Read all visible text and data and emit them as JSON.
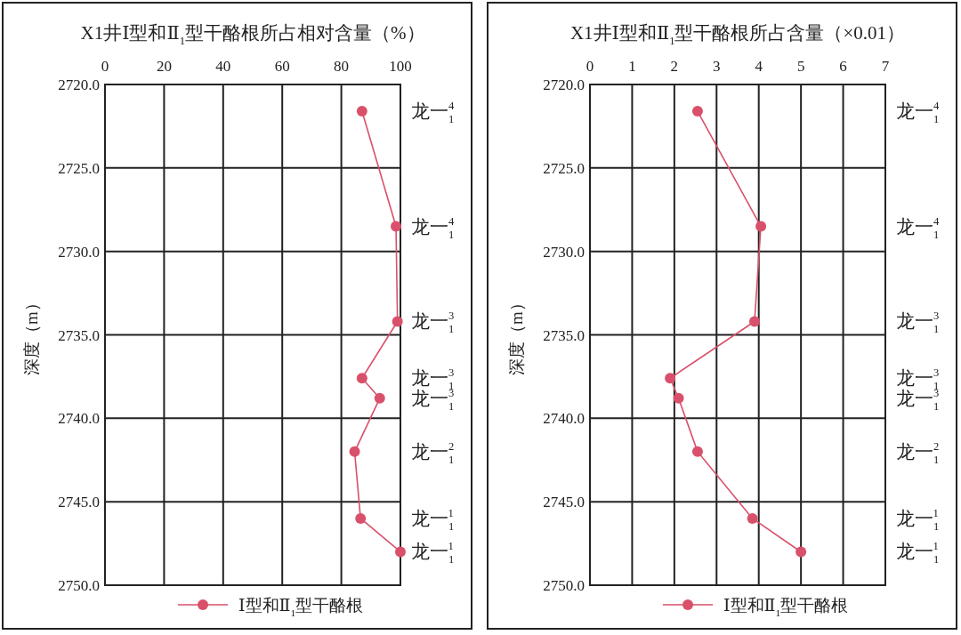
{
  "chart_data": [
    {
      "type": "line",
      "title": "X1井Ⅰ型和Ⅱ$_{1}$型干酪根所占相对含量（%）",
      "ylabel": "深度（m）",
      "xlim": [
        0,
        100
      ],
      "xticks": [
        0,
        20,
        40,
        60,
        80,
        100
      ],
      "ylim": [
        2750,
        2720
      ],
      "yticks": [
        {
          "value": 2720,
          "label": "2720.0"
        },
        {
          "value": 2725,
          "label": "2725.0"
        },
        {
          "value": 2730,
          "label": "2730.0"
        },
        {
          "value": 2735,
          "label": "2735.0"
        },
        {
          "value": 2740,
          "label": "2740.0"
        },
        {
          "value": 2745,
          "label": "2745.0"
        },
        {
          "value": 2750,
          "label": "2750.0"
        }
      ],
      "grid": true,
      "legend": "bottom right",
      "marker": "circle",
      "line_style": "solid",
      "series": [
        {
          "name": "Ⅰ型和Ⅱ$_{1}$型干酪根",
          "color": "#d9506a",
          "x": [
            87,
            98.5,
            99,
            87,
            93,
            84.5,
            86.5,
            100
          ],
          "values": [
            2721.6,
            2728.5,
            2734.2,
            2737.6,
            2738.8,
            2742.0,
            2746.0,
            2748.0
          ]
        }
      ],
      "annotations": [
        "龙一$_{1}$$^{4}$",
        "龙一$_{1}$$^{4}$",
        "龙一$_{1}$$^{3}$",
        "龙一$_{1}$$^{3}$",
        "龙一$_{1}$$^{3}$",
        "龙一$_{1}$$^{2}$",
        "龙一$_{1}$$^{1}$",
        "龙一$_{1}$$^{1}$"
      ]
    },
    {
      "type": "line",
      "title": "X1井Ⅰ型和Ⅱ$_{1}$型干酪根所占含量（×0.01）",
      "ylabel": "深度（m）",
      "xlim": [
        0,
        7
      ],
      "xticks": [
        0,
        1,
        2,
        3,
        4,
        5,
        6,
        7
      ],
      "ylim": [
        2750,
        2720
      ],
      "yticks": [
        {
          "value": 2720,
          "label": "2720.0"
        },
        {
          "value": 2725,
          "label": "2725.0"
        },
        {
          "value": 2730,
          "label": "2730.0"
        },
        {
          "value": 2735,
          "label": "2735.0"
        },
        {
          "value": 2740,
          "label": "2740.0"
        },
        {
          "value": 2745,
          "label": "2745.0"
        },
        {
          "value": 2750,
          "label": "2750.0"
        }
      ],
      "grid": true,
      "legend": "bottom right",
      "marker": "circle",
      "line_style": "solid",
      "series": [
        {
          "name": "Ⅰ型和Ⅱ$_{1}$型干酪根",
          "color": "#d9506a",
          "x": [
            2.55,
            4.05,
            3.9,
            1.9,
            2.1,
            2.55,
            3.85,
            5.0
          ],
          "values": [
            2721.6,
            2728.5,
            2734.2,
            2737.6,
            2738.8,
            2742.0,
            2746.0,
            2748.0
          ]
        }
      ],
      "annotations": [
        "龙一$_{1}$$^{4}$",
        "龙一$_{1}$$^{4}$",
        "龙一$_{1}$$^{3}$",
        "龙一$_{1}$$^{3}$",
        "龙一$_{1}$$^{3}$",
        "龙一$_{1}$$^{2}$",
        "龙一$_{1}$$^{1}$",
        "龙一$_{1}$$^{1}$"
      ]
    }
  ]
}
